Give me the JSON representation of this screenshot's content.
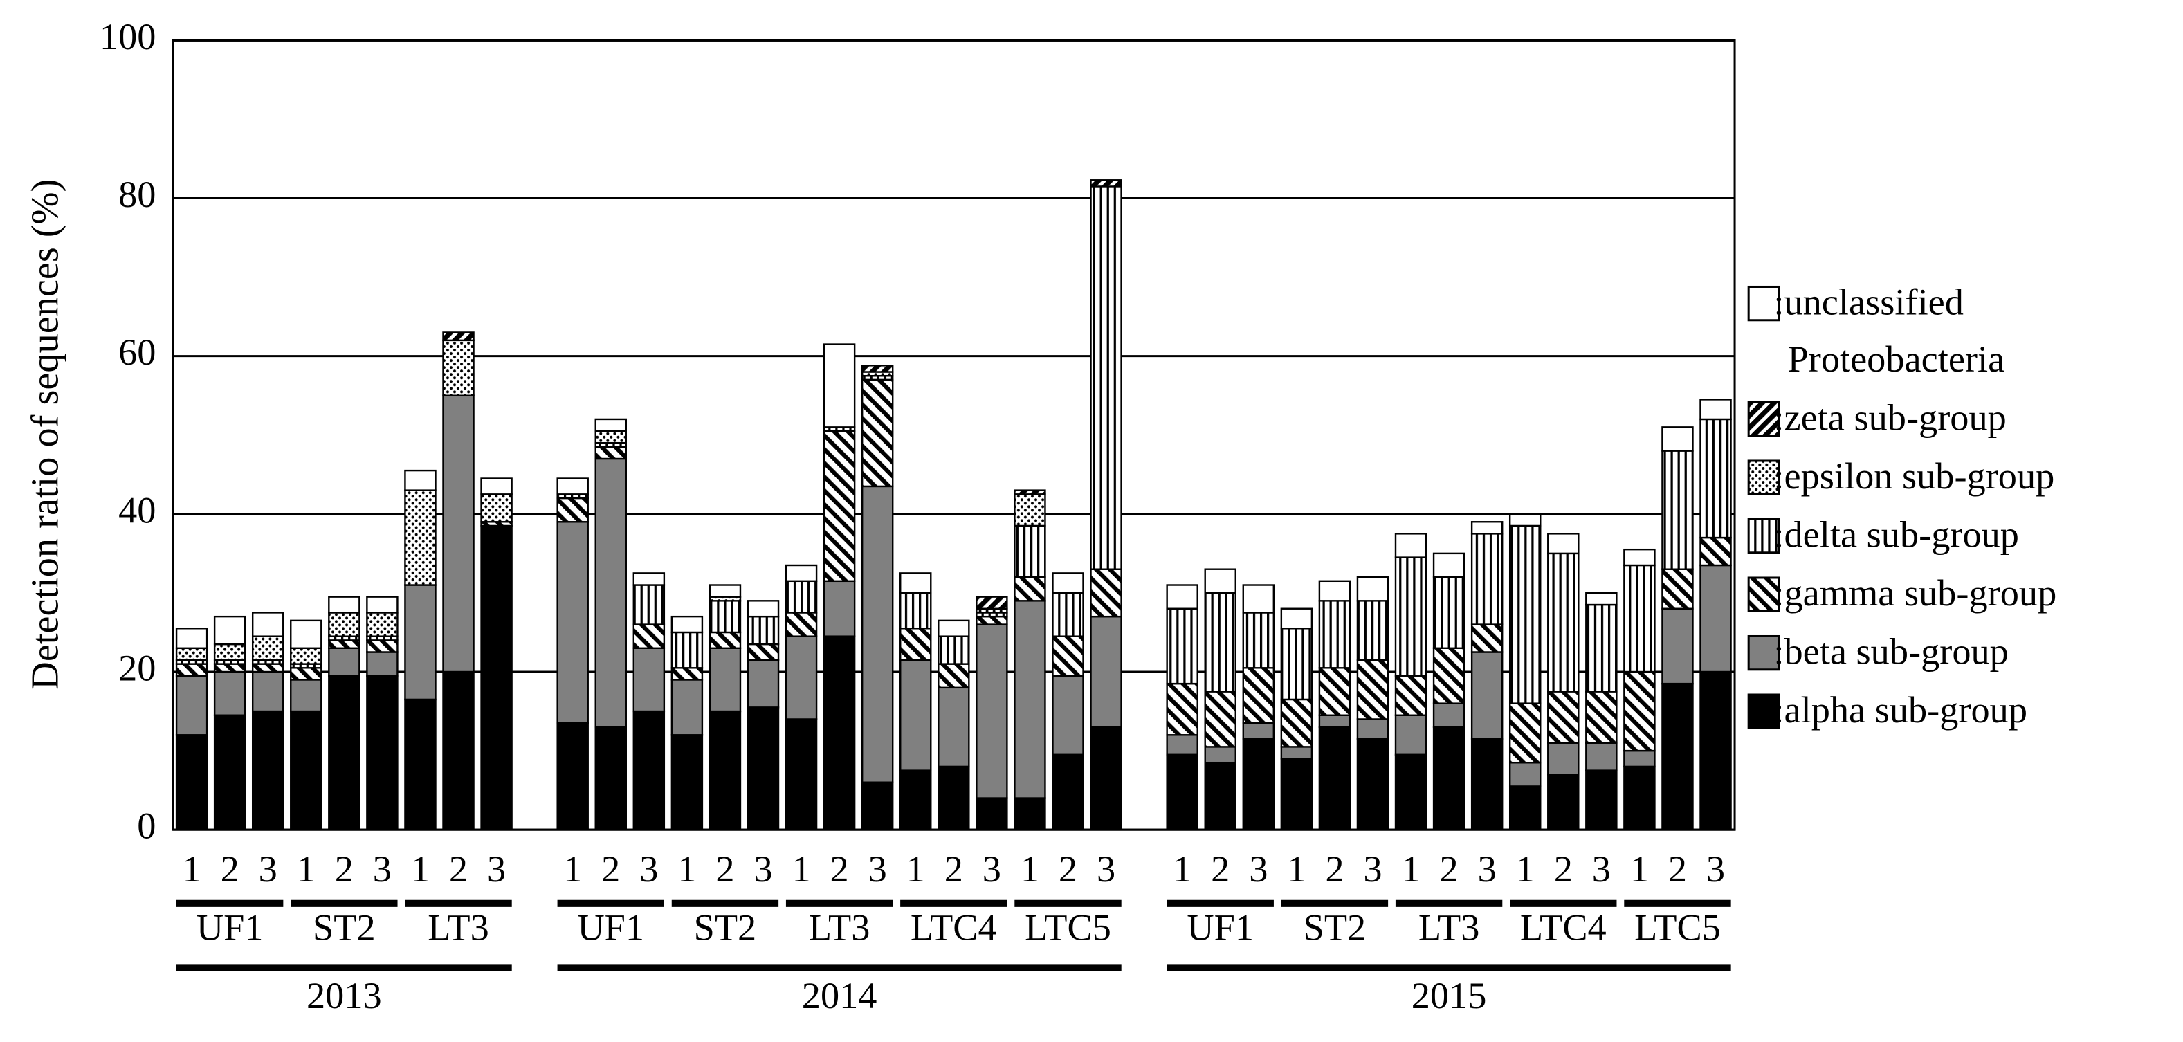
{
  "chart_data": {
    "type": "bar",
    "stacked": true,
    "y_label": "Detection ratio of  sequences (%)",
    "categories": [
      "1",
      "2",
      "3",
      "1",
      "2",
      "3",
      "1",
      "2",
      "3",
      null,
      "1",
      "2",
      "3",
      "1",
      "2",
      "3",
      "1",
      "2",
      "3",
      "1",
      "2",
      "3",
      "1",
      "2",
      "3",
      null,
      "1",
      "2",
      "3",
      "1",
      "2",
      "3",
      "1",
      "2",
      "3",
      "1",
      "2",
      "3",
      "1",
      "2",
      "3"
    ],
    "group_labels": [
      "UF1",
      "ST2",
      "LT3",
      "UF1",
      "ST2",
      "LT3",
      "LTC4",
      "LTC5",
      "UF1",
      "ST2",
      "LT3",
      "LTC4",
      "LTC5"
    ],
    "year_labels": [
      "2013",
      "2014",
      "2015"
    ],
    "ylim": [
      0,
      100
    ],
    "yticks": [
      0,
      20,
      40,
      60,
      80,
      100
    ],
    "grid": true,
    "series": [
      {
        "name": ":alpha sub-group",
        "color": "#000000",
        "pattern": null,
        "values": [
          12,
          14.5,
          15,
          15,
          19.5,
          19.5,
          16.5,
          20,
          38.5,
          null,
          13.5,
          13,
          15,
          12,
          15,
          15.5,
          14,
          24.5,
          6,
          7.5,
          8,
          4,
          4,
          9.5,
          13,
          null,
          9.5,
          8.5,
          11.5,
          9,
          13,
          11.5,
          9.5,
          13,
          11.5,
          5.5,
          7,
          7.5,
          8,
          18.5,
          20
        ]
      },
      {
        "name": ":beta sub-group",
        "color": "#808080",
        "pattern": null,
        "values": [
          7.5,
          5.5,
          5,
          4,
          3.5,
          3,
          14.5,
          35,
          0,
          null,
          25.5,
          34,
          8,
          7,
          8,
          6,
          10.5,
          7,
          37.5,
          14,
          10,
          22,
          25,
          10,
          14,
          null,
          2.5,
          2,
          2,
          1.5,
          1.5,
          2.5,
          5,
          3,
          11,
          3,
          4,
          3.5,
          2,
          9.5,
          13.5
        ]
      },
      {
        "name": ":gamma sub-group",
        "color": "#000000",
        "pattern": "diagonal",
        "values": [
          1.5,
          1,
          1,
          1.5,
          1,
          1.5,
          0,
          0,
          0.5,
          null,
          3,
          1.5,
          3,
          1.5,
          2,
          2,
          3,
          19,
          13.5,
          4,
          3,
          1,
          3,
          5,
          6,
          null,
          6.5,
          7,
          7,
          6,
          6,
          7.5,
          5,
          7,
          3.5,
          7.5,
          6.5,
          6.5,
          10,
          5,
          3.5
        ]
      },
      {
        "name": ":delta sub-group",
        "color": "#000000",
        "pattern": "vertical",
        "values": [
          0.5,
          0.5,
          0.5,
          0.5,
          0.5,
          0.5,
          0,
          0,
          0,
          null,
          0.5,
          0.5,
          5,
          4.5,
          4,
          3.5,
          4,
          0.5,
          0.5,
          4.5,
          3.5,
          0.5,
          6.5,
          5.5,
          48.5,
          null,
          9.5,
          12.5,
          7,
          9,
          8.5,
          7.5,
          15,
          9,
          11.5,
          22.5,
          17.5,
          11,
          13.5,
          15,
          15
        ]
      },
      {
        "name": ":epsilon sub-group",
        "color": "#000000",
        "pattern": "dots",
        "values": [
          1.5,
          2,
          3,
          2,
          3,
          3,
          12,
          7,
          3.5,
          null,
          0,
          1.5,
          0,
          0,
          0.5,
          0,
          0,
          0,
          0.5,
          0,
          0,
          0.5,
          4,
          0,
          0,
          null,
          0,
          0,
          0,
          0,
          0,
          0,
          0,
          0,
          0,
          0,
          0,
          0,
          0,
          0,
          0
        ]
      },
      {
        "name": ":zeta sub-group",
        "color": "#000000",
        "pattern": "bold-diagonal",
        "values": [
          0,
          0,
          0,
          0,
          0,
          0,
          0,
          1,
          0,
          null,
          0,
          0,
          0,
          0,
          0,
          0,
          0,
          0,
          0.8,
          0,
          0,
          1.5,
          0.5,
          0,
          0.8,
          null,
          0,
          0,
          0,
          0,
          0,
          0,
          0,
          0,
          0,
          0,
          0,
          0,
          0,
          0,
          0
        ]
      },
      {
        "name": ":unclassified Proteobacteria",
        "color": "#ffffff",
        "pattern": null,
        "values": [
          2.5,
          3.5,
          3,
          3.5,
          2,
          2,
          2.5,
          0,
          2,
          null,
          2,
          1.5,
          1.5,
          2,
          1.5,
          2,
          2,
          10.5,
          0,
          2.5,
          2,
          0,
          0,
          2.5,
          0,
          null,
          3,
          3,
          3.5,
          2.5,
          2.5,
          3,
          3,
          3,
          1.5,
          1.5,
          2.5,
          1.5,
          2,
          3,
          2.5
        ]
      }
    ]
  }
}
